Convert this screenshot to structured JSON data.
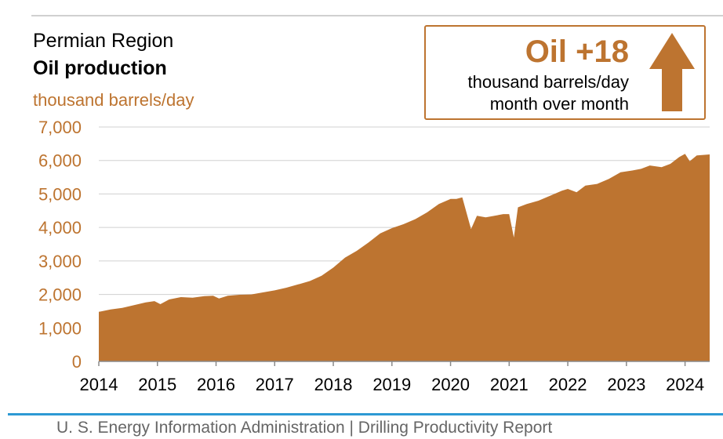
{
  "header": {
    "region": "Permian Region",
    "title": "Oil production",
    "unit": "thousand barrels/day"
  },
  "callout": {
    "value": "Oil +18",
    "line1": "thousand barrels/day",
    "line2": "month over month",
    "direction": "up",
    "icon": "arrow-up-icon"
  },
  "footer": {
    "text": "U. S. Energy Information Administration  |  Drilling Productivity Report"
  },
  "colors": {
    "accent": "#bd7430",
    "grid": "#d0d0d0",
    "footer_rule": "#2d9ad4",
    "footer_text": "#666666"
  },
  "chart_data": {
    "type": "area",
    "title": "Oil production",
    "ylabel": "thousand barrels/day",
    "xlabel": "",
    "ylim": [
      0,
      7000
    ],
    "xlim": [
      2014.0,
      2024.42
    ],
    "yticks": [
      0,
      1000,
      2000,
      3000,
      4000,
      5000,
      6000,
      7000
    ],
    "ytick_labels": [
      "0",
      "1,000",
      "2,000",
      "3,000",
      "4,000",
      "5,000",
      "6,000",
      "7,000"
    ],
    "xticks": [
      2014,
      2015,
      2016,
      2017,
      2018,
      2019,
      2020,
      2021,
      2022,
      2023,
      2024
    ],
    "xtick_labels": [
      "2014",
      "2015",
      "2016",
      "2017",
      "2018",
      "2019",
      "2020",
      "2021",
      "2022",
      "2023",
      "2024"
    ],
    "grid": true,
    "legend": "none",
    "series": [
      {
        "color": "#bd7430",
        "points": [
          [
            2014.0,
            1480
          ],
          [
            2014.2,
            1550
          ],
          [
            2014.4,
            1600
          ],
          [
            2014.6,
            1680
          ],
          [
            2014.8,
            1760
          ],
          [
            2014.95,
            1800
          ],
          [
            2015.05,
            1710
          ],
          [
            2015.2,
            1850
          ],
          [
            2015.4,
            1920
          ],
          [
            2015.6,
            1900
          ],
          [
            2015.8,
            1950
          ],
          [
            2015.95,
            1960
          ],
          [
            2016.05,
            1880
          ],
          [
            2016.2,
            1960
          ],
          [
            2016.4,
            1990
          ],
          [
            2016.6,
            2000
          ],
          [
            2016.8,
            2060
          ],
          [
            2017.0,
            2120
          ],
          [
            2017.2,
            2200
          ],
          [
            2017.4,
            2300
          ],
          [
            2017.6,
            2400
          ],
          [
            2017.8,
            2560
          ],
          [
            2018.0,
            2800
          ],
          [
            2018.2,
            3100
          ],
          [
            2018.4,
            3300
          ],
          [
            2018.6,
            3550
          ],
          [
            2018.8,
            3820
          ],
          [
            2019.0,
            3980
          ],
          [
            2019.2,
            4100
          ],
          [
            2019.4,
            4250
          ],
          [
            2019.6,
            4450
          ],
          [
            2019.8,
            4700
          ],
          [
            2020.0,
            4850
          ],
          [
            2020.1,
            4850
          ],
          [
            2020.2,
            4900
          ],
          [
            2020.35,
            3950
          ],
          [
            2020.45,
            4350
          ],
          [
            2020.6,
            4300
          ],
          [
            2020.75,
            4350
          ],
          [
            2020.9,
            4400
          ],
          [
            2021.0,
            4400
          ],
          [
            2021.08,
            3700
          ],
          [
            2021.15,
            4600
          ],
          [
            2021.3,
            4700
          ],
          [
            2021.5,
            4800
          ],
          [
            2021.7,
            4950
          ],
          [
            2021.9,
            5100
          ],
          [
            2022.0,
            5150
          ],
          [
            2022.15,
            5050
          ],
          [
            2022.3,
            5250
          ],
          [
            2022.5,
            5300
          ],
          [
            2022.7,
            5450
          ],
          [
            2022.9,
            5650
          ],
          [
            2023.1,
            5700
          ],
          [
            2023.25,
            5750
          ],
          [
            2023.4,
            5850
          ],
          [
            2023.6,
            5800
          ],
          [
            2023.75,
            5900
          ],
          [
            2023.9,
            6100
          ],
          [
            2024.0,
            6200
          ],
          [
            2024.08,
            5980
          ],
          [
            2024.2,
            6150
          ],
          [
            2024.42,
            6180
          ]
        ]
      }
    ]
  }
}
